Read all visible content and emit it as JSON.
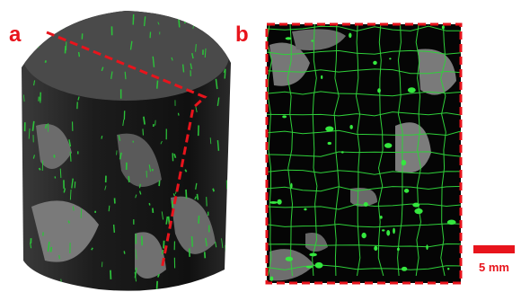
{
  "panels": [
    {
      "label": "a"
    },
    {
      "label": "b"
    }
  ],
  "scale_bar": {
    "label": "5 mm"
  }
}
